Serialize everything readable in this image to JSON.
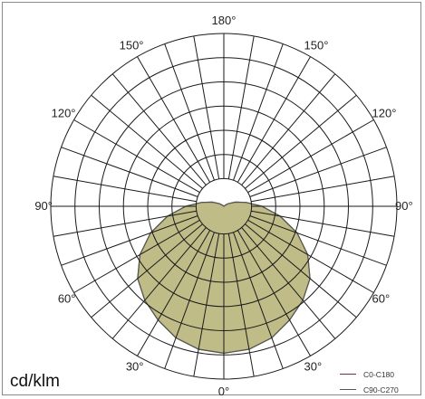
{
  "chart_data": {
    "type": "polar",
    "unit_label": "cd/klm",
    "angle_labels": [
      {
        "deg": 0,
        "text": "0°"
      },
      {
        "deg": 30,
        "text": "30°"
      },
      {
        "deg": 60,
        "text": "60°"
      },
      {
        "deg": 90,
        "text": "90°"
      },
      {
        "deg": 120,
        "text": "120°"
      },
      {
        "deg": 150,
        "text": "150°"
      },
      {
        "deg": 180,
        "text": "180°"
      },
      {
        "deg": -150,
        "text": "150°"
      },
      {
        "deg": -120,
        "text": "120°"
      },
      {
        "deg": -90,
        "text": "90°"
      },
      {
        "deg": -60,
        "text": "60°"
      },
      {
        "deg": -30,
        "text": "30°"
      }
    ],
    "spoke_step_deg": 10,
    "ring_count": 6,
    "inner_hole_fraction": 0.16,
    "grid": true,
    "fill_color": "#a8a25a",
    "fill_opacity": 0.72,
    "outline_color": "#6a6f3a",
    "series": [
      {
        "name": "C0-C180",
        "color": "#7a2e3a",
        "angles_deg": [
          0,
          10,
          20,
          30,
          40,
          50,
          60,
          70,
          80,
          90,
          100,
          110,
          120,
          130,
          140,
          150,
          160,
          170,
          180
        ],
        "values_fraction": [
          0.85,
          0.84,
          0.81,
          0.76,
          0.71,
          0.65,
          0.56,
          0.45,
          0.33,
          0.22,
          0.13,
          0.07,
          0.03,
          0.01,
          0,
          0,
          0,
          0,
          0
        ]
      },
      {
        "name": "C90-C270",
        "color": "#555555",
        "angles_deg": [
          0,
          10,
          20,
          30,
          40,
          50,
          60,
          70,
          80,
          90,
          100,
          110,
          120,
          130,
          140,
          150,
          160,
          170,
          180
        ],
        "values_fraction": [
          0.85,
          0.84,
          0.81,
          0.76,
          0.71,
          0.65,
          0.56,
          0.45,
          0.33,
          0.22,
          0.13,
          0.07,
          0.03,
          0.01,
          0,
          0,
          0,
          0,
          0
        ]
      }
    ]
  }
}
